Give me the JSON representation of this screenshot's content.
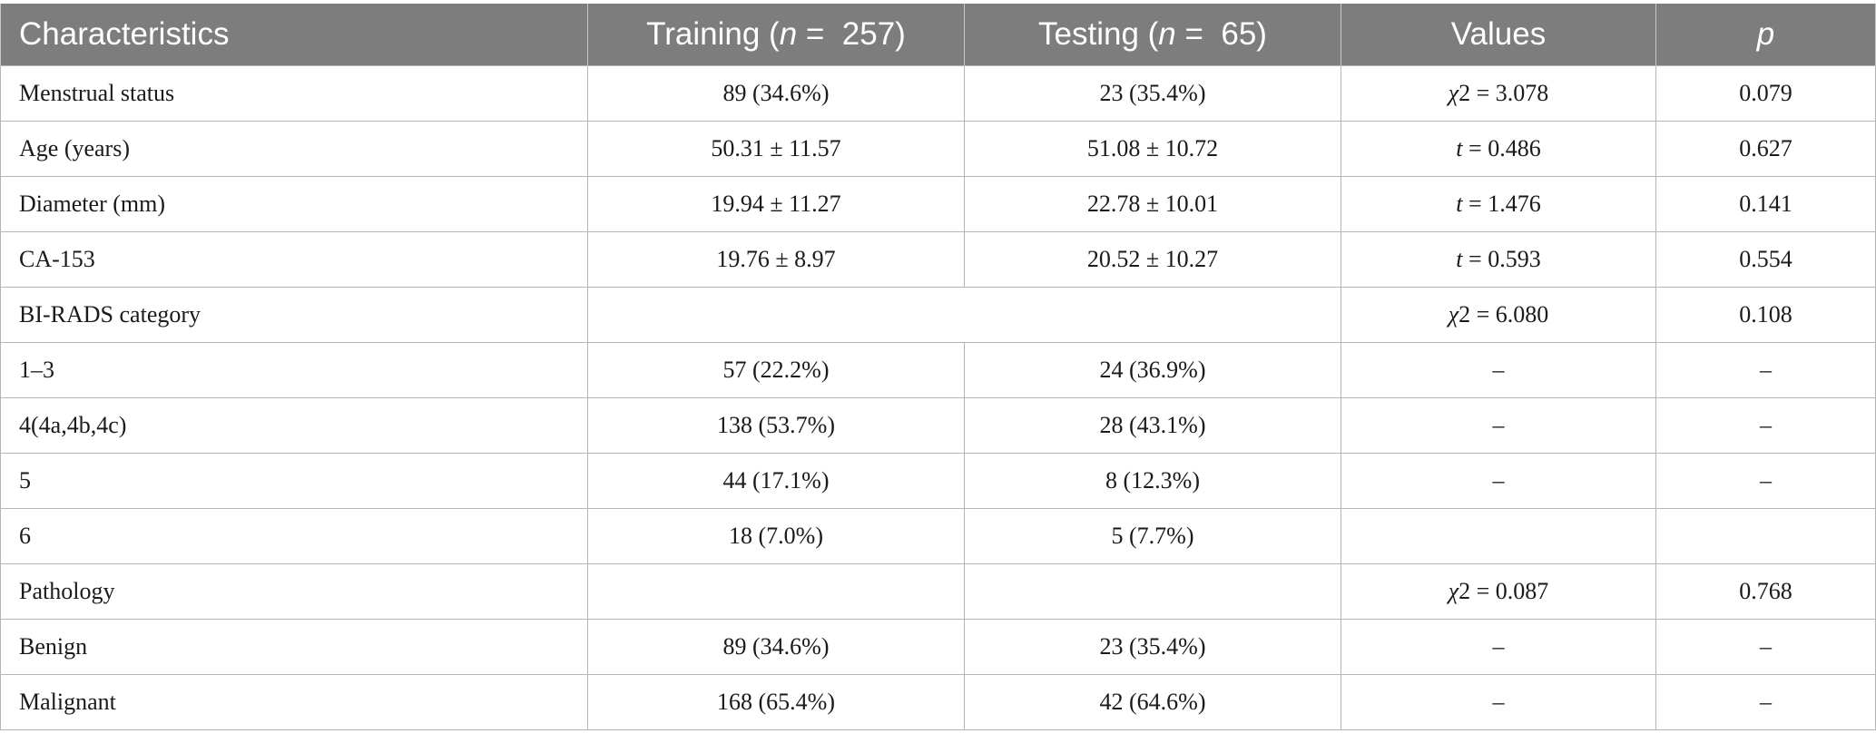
{
  "table": {
    "headers": {
      "characteristics": "Characteristics",
      "training_prefix": "Training (",
      "training_n": "n",
      "training_suffix": " =  257)",
      "testing_prefix": "Testing (",
      "testing_n": "n",
      "testing_suffix": " =  65)",
      "values": "Values",
      "p": "p"
    },
    "rows": [
      {
        "label": "Menstrual status",
        "training": "89 (34.6%)",
        "testing": "23 (35.4%)",
        "stat_symbol": "χ",
        "stat_value": "2 = 3.078",
        "p": "0.079"
      },
      {
        "label": "Age (years)",
        "training": "50.31 ± 11.57",
        "testing": "51.08 ± 10.72",
        "stat_symbol": "t",
        "stat_value": " = 0.486",
        "p": "0.627"
      },
      {
        "label": "Diameter (mm)",
        "training": "19.94 ± 11.27",
        "testing": "22.78 ± 10.01",
        "stat_symbol": "t",
        "stat_value": " = 1.476",
        "p": "0.141"
      },
      {
        "label": "CA-153",
        "training": "19.76 ± 8.97",
        "testing": "20.52 ± 10.27",
        "stat_symbol": "t",
        "stat_value": " = 0.593",
        "p": "0.554"
      },
      {
        "label": "BI-RADS category",
        "stat_symbol": "χ",
        "stat_value": "2 = 6.080",
        "p": "0.108"
      },
      {
        "label": "1–3",
        "training": "57 (22.2%)",
        "testing": "24 (36.9%)",
        "stat_value": "–",
        "p": "–"
      },
      {
        "label": "4(4a,4b,4c)",
        "training": "138 (53.7%)",
        "testing": "28 (43.1%)",
        "stat_value": "–",
        "p": "–"
      },
      {
        "label": "5",
        "training": "44 (17.1%)",
        "testing": "8 (12.3%)",
        "stat_value": "–",
        "p": "–"
      },
      {
        "label": "6",
        "training": "18 (7.0%)",
        "testing": "5 (7.7%)",
        "stat_value": "",
        "p": ""
      },
      {
        "label": "Pathology",
        "training": "",
        "testing": "",
        "stat_symbol": "χ",
        "stat_value": "2 = 0.087",
        "p": "0.768"
      },
      {
        "label": "Benign",
        "training": "89 (34.6%)",
        "testing": "23 (35.4%)",
        "stat_value": "–",
        "p": "–"
      },
      {
        "label": "Malignant",
        "training": "168 (65.4%)",
        "testing": "42 (64.6%)",
        "stat_value": "–",
        "p": "–"
      }
    ]
  }
}
